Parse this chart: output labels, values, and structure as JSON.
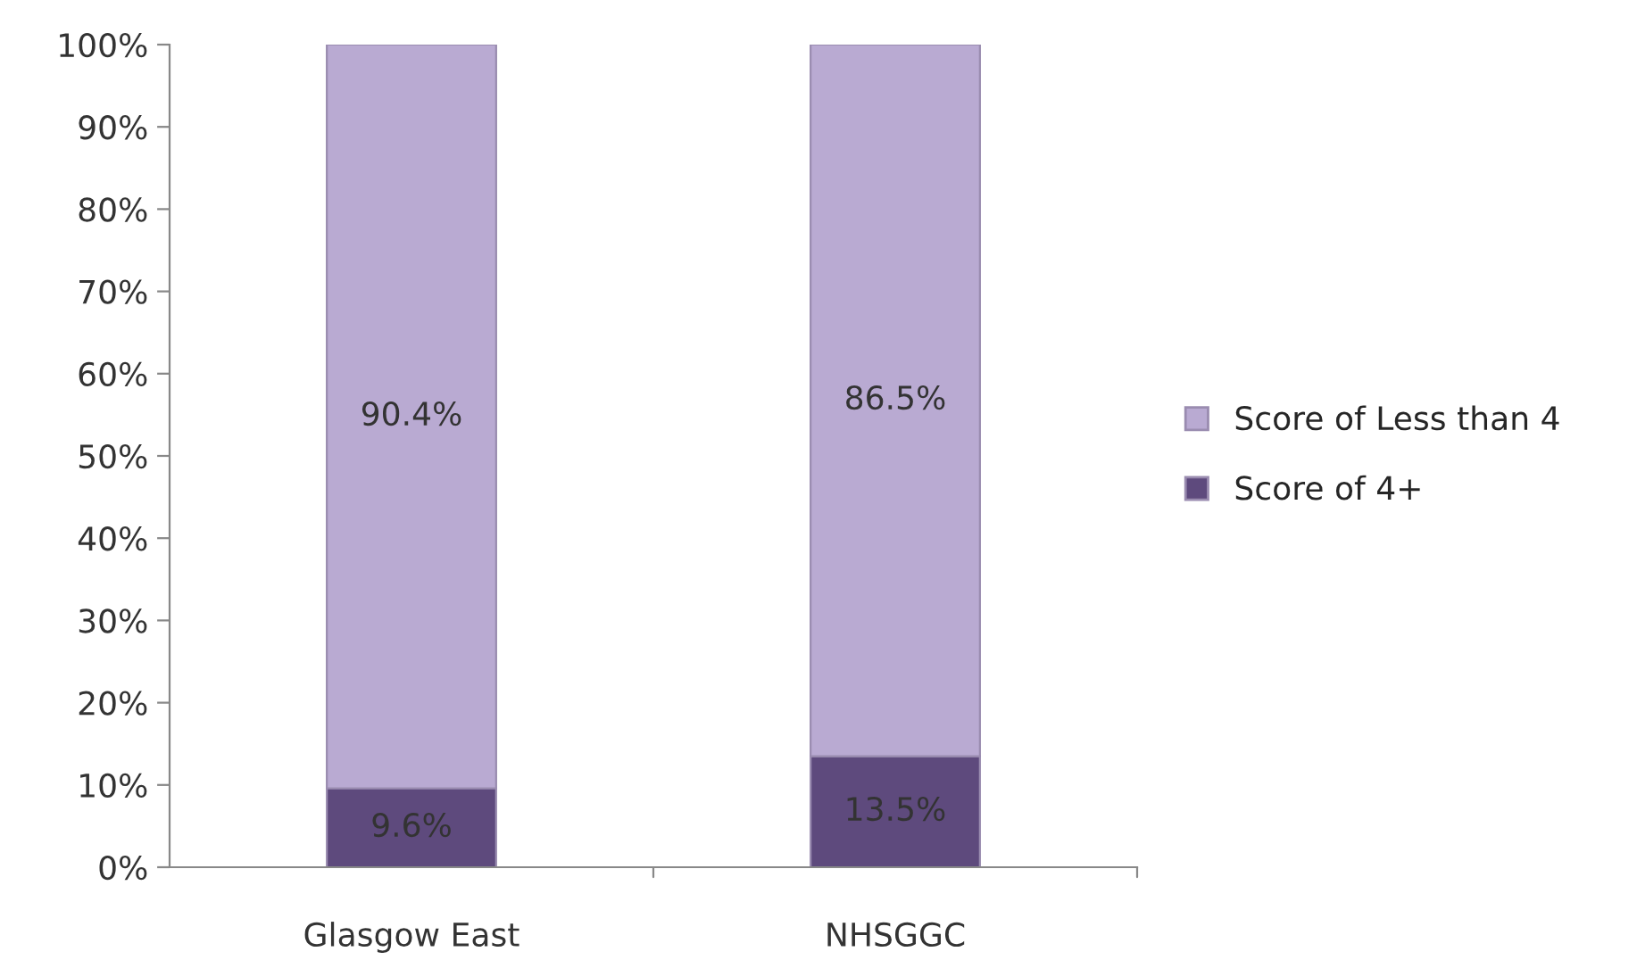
{
  "chart_data": {
    "type": "bar",
    "stacked": true,
    "categories": [
      "Glasgow East",
      "NHSGGC"
    ],
    "series": [
      {
        "name": "Score of 4+",
        "color": "#5e4a7d",
        "values": [
          9.6,
          13.5
        ],
        "value_labels": [
          "9.6%",
          "13.5%"
        ]
      },
      {
        "name": "Score of Less than 4",
        "color": "#b9aad2",
        "values": [
          90.4,
          86.5
        ],
        "value_labels": [
          "90.4%",
          "86.5%"
        ]
      }
    ],
    "ylim": [
      0,
      100
    ],
    "yticks": [
      {
        "value": 0,
        "label": "0%"
      },
      {
        "value": 10,
        "label": "10%"
      },
      {
        "value": 20,
        "label": "20%"
      },
      {
        "value": 30,
        "label": "30%"
      },
      {
        "value": 40,
        "label": "40%"
      },
      {
        "value": 50,
        "label": "50%"
      },
      {
        "value": 60,
        "label": "60%"
      },
      {
        "value": 70,
        "label": "70%"
      },
      {
        "value": 80,
        "label": "80%"
      },
      {
        "value": 90,
        "label": "90%"
      },
      {
        "value": 100,
        "label": "100%"
      }
    ],
    "grid": false,
    "legend": "right"
  }
}
